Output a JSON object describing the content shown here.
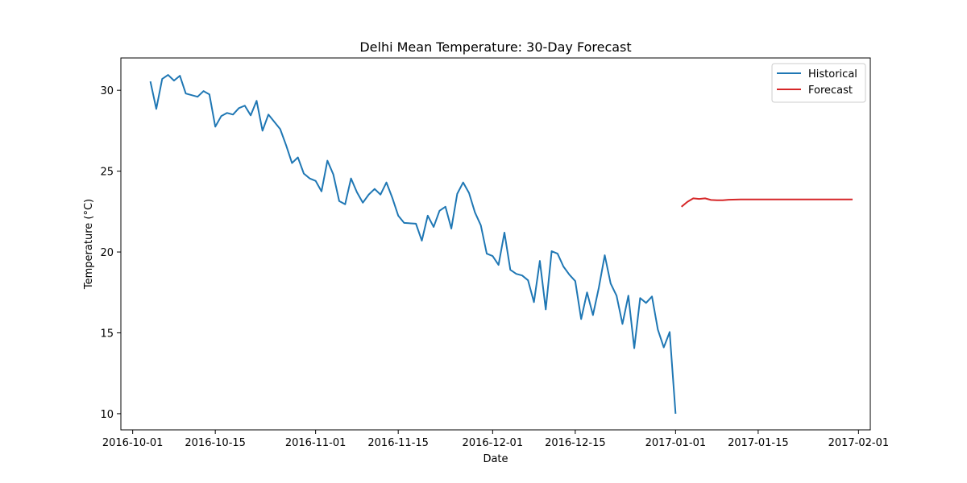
{
  "chart_data": {
    "type": "line",
    "title": "Delhi Mean Temperature: 30-Day Forecast",
    "xlabel": "Date",
    "ylabel": "Temperature (°C)",
    "xlim": [
      "2016-09-29",
      "2017-02-03"
    ],
    "ylim": [
      9.0,
      32.0
    ],
    "x_ticks": [
      "2016-10-01",
      "2016-10-15",
      "2016-11-01",
      "2016-11-15",
      "2016-12-01",
      "2016-12-15",
      "2017-01-01",
      "2017-01-15",
      "2017-02-01"
    ],
    "y_ticks": [
      10,
      15,
      20,
      25,
      30
    ],
    "grid": false,
    "legend": {
      "placement": "top-right"
    },
    "series": [
      {
        "name": "Historical",
        "color": "#1f77b4",
        "points": [
          [
            "2016-10-04",
            30.55
          ],
          [
            "2016-10-05",
            28.85
          ],
          [
            "2016-10-06",
            30.7
          ],
          [
            "2016-10-07",
            30.95
          ],
          [
            "2016-10-08",
            30.6
          ],
          [
            "2016-10-09",
            30.9
          ],
          [
            "2016-10-10",
            29.8
          ],
          [
            "2016-10-12",
            29.6
          ],
          [
            "2016-10-13",
            29.95
          ],
          [
            "2016-10-14",
            29.75
          ],
          [
            "2016-10-15",
            27.75
          ],
          [
            "2016-10-16",
            28.4
          ],
          [
            "2016-10-17",
            28.6
          ],
          [
            "2016-10-18",
            28.5
          ],
          [
            "2016-10-19",
            28.9
          ],
          [
            "2016-10-20",
            29.05
          ],
          [
            "2016-10-21",
            28.45
          ],
          [
            "2016-10-22",
            29.35
          ],
          [
            "2016-10-23",
            27.5
          ],
          [
            "2016-10-24",
            28.5
          ],
          [
            "2016-10-26",
            27.6
          ],
          [
            "2016-10-27",
            26.6
          ],
          [
            "2016-10-28",
            25.5
          ],
          [
            "2016-10-29",
            25.85
          ],
          [
            "2016-10-30",
            24.85
          ],
          [
            "2016-10-31",
            24.55
          ],
          [
            "2016-11-01",
            24.4
          ],
          [
            "2016-11-02",
            23.75
          ],
          [
            "2016-11-03",
            25.65
          ],
          [
            "2016-11-04",
            24.8
          ],
          [
            "2016-11-05",
            23.15
          ],
          [
            "2016-11-06",
            22.95
          ],
          [
            "2016-11-07",
            24.55
          ],
          [
            "2016-11-08",
            23.7
          ],
          [
            "2016-11-09",
            23.05
          ],
          [
            "2016-11-10",
            23.55
          ],
          [
            "2016-11-11",
            23.9
          ],
          [
            "2016-11-12",
            23.55
          ],
          [
            "2016-11-13",
            24.3
          ],
          [
            "2016-11-14",
            23.35
          ],
          [
            "2016-11-15",
            22.25
          ],
          [
            "2016-11-16",
            21.8
          ],
          [
            "2016-11-18",
            21.75
          ],
          [
            "2016-11-19",
            20.7
          ],
          [
            "2016-11-20",
            22.25
          ],
          [
            "2016-11-21",
            21.55
          ],
          [
            "2016-11-22",
            22.55
          ],
          [
            "2016-11-23",
            22.8
          ],
          [
            "2016-11-24",
            21.45
          ],
          [
            "2016-11-25",
            23.6
          ],
          [
            "2016-11-26",
            24.3
          ],
          [
            "2016-11-27",
            23.65
          ],
          [
            "2016-11-28",
            22.45
          ],
          [
            "2016-11-29",
            21.65
          ],
          [
            "2016-11-30",
            19.9
          ],
          [
            "2016-12-01",
            19.75
          ],
          [
            "2016-12-02",
            19.2
          ],
          [
            "2016-12-03",
            21.2
          ],
          [
            "2016-12-04",
            18.9
          ],
          [
            "2016-12-05",
            18.65
          ],
          [
            "2016-12-06",
            18.55
          ],
          [
            "2016-12-07",
            18.25
          ],
          [
            "2016-12-08",
            16.9
          ],
          [
            "2016-12-09",
            19.45
          ],
          [
            "2016-12-10",
            16.45
          ],
          [
            "2016-12-11",
            20.05
          ],
          [
            "2016-12-12",
            19.9
          ],
          [
            "2016-12-13",
            19.1
          ],
          [
            "2016-12-14",
            18.6
          ],
          [
            "2016-12-15",
            18.2
          ],
          [
            "2016-12-16",
            15.85
          ],
          [
            "2016-12-17",
            17.5
          ],
          [
            "2016-12-18",
            16.1
          ],
          [
            "2016-12-19",
            17.8
          ],
          [
            "2016-12-20",
            19.8
          ],
          [
            "2016-12-21",
            18.05
          ],
          [
            "2016-12-22",
            17.3
          ],
          [
            "2016-12-23",
            15.55
          ],
          [
            "2016-12-24",
            17.3
          ],
          [
            "2016-12-25",
            14.05
          ],
          [
            "2016-12-26",
            17.15
          ],
          [
            "2016-12-27",
            16.85
          ],
          [
            "2016-12-28",
            17.25
          ],
          [
            "2016-12-29",
            15.2
          ],
          [
            "2016-12-30",
            14.1
          ],
          [
            "2016-12-31",
            15.05
          ],
          [
            "2017-01-01",
            10.0
          ]
        ]
      },
      {
        "name": "Forecast",
        "color": "#d62728",
        "points": [
          [
            "2017-01-02",
            22.8
          ],
          [
            "2017-01-03",
            23.1
          ],
          [
            "2017-01-04",
            23.32
          ],
          [
            "2017-01-05",
            23.28
          ],
          [
            "2017-01-06",
            23.32
          ],
          [
            "2017-01-07",
            23.22
          ],
          [
            "2017-01-08",
            23.2
          ],
          [
            "2017-01-09",
            23.2
          ],
          [
            "2017-01-10",
            23.23
          ],
          [
            "2017-01-12",
            23.25
          ],
          [
            "2017-01-14",
            23.25
          ],
          [
            "2017-01-16",
            23.25
          ],
          [
            "2017-01-18",
            23.25
          ],
          [
            "2017-01-20",
            23.25
          ],
          [
            "2017-01-22",
            23.25
          ],
          [
            "2017-01-24",
            23.25
          ],
          [
            "2017-01-26",
            23.25
          ],
          [
            "2017-01-28",
            23.25
          ],
          [
            "2017-01-30",
            23.25
          ],
          [
            "2017-01-31",
            23.25
          ]
        ]
      }
    ]
  }
}
